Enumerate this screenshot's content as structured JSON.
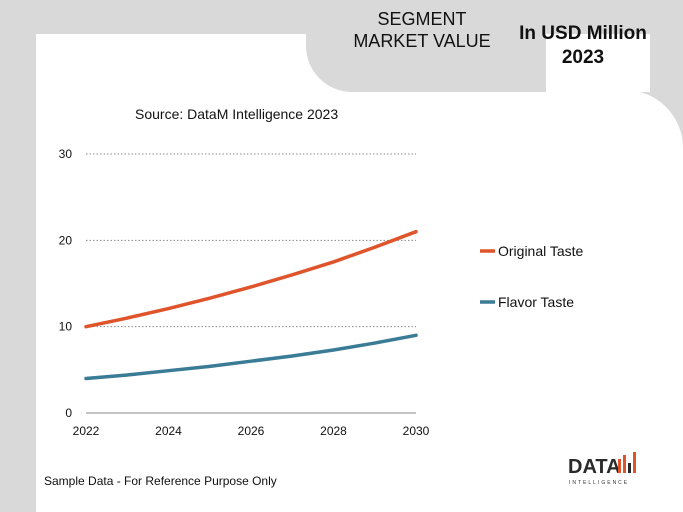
{
  "header": {
    "segment_title": "SEGMENT MARKET VALUE",
    "unit_title_line1": "In USD Million",
    "unit_title_line2": "2023"
  },
  "source": "Source: DataM Intelligence  2023",
  "footer_note": "Sample Data - For Reference Purpose Only",
  "logo": {
    "main": "DATA",
    "sub": "INTELLIGENCE"
  },
  "chart_data": {
    "type": "line",
    "title": "",
    "xlabel": "",
    "ylabel": "",
    "x": [
      2022,
      2023,
      2024,
      2025,
      2026,
      2027,
      2028,
      2029,
      2030
    ],
    "x_ticks": [
      2022,
      2024,
      2026,
      2028,
      2030
    ],
    "y_ticks": [
      0,
      10,
      20,
      30
    ],
    "ylim": [
      0,
      30
    ],
    "grid": "horizontal-dotted",
    "legend": "right",
    "series": [
      {
        "name": "Original Taste",
        "color": "#e0542b",
        "values": [
          10.0,
          11.0,
          12.1,
          13.3,
          14.6,
          16.0,
          17.5,
          19.2,
          21.0
        ]
      },
      {
        "name": "Flavor Taste",
        "color": "#3a7b96",
        "values": [
          4.0,
          4.4,
          4.9,
          5.4,
          6.0,
          6.6,
          7.3,
          8.1,
          9.0
        ]
      }
    ]
  }
}
